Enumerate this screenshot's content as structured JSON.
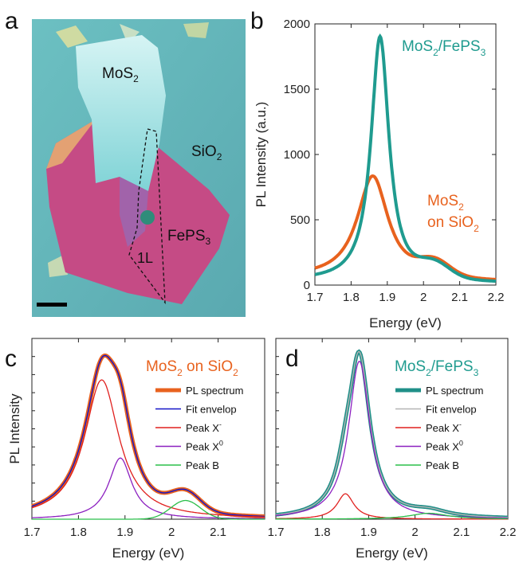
{
  "panels": {
    "a": {
      "label": "a",
      "annotations": {
        "mos2": "MoS",
        "mos2_sub": "2",
        "sio2": "SiO",
        "sio2_sub": "2",
        "feps3": "FePS",
        "feps3_sub": "3",
        "monolayer": "1L"
      },
      "colors": {
        "substrate": "#5fb3b5",
        "feps3": "#c24a83",
        "mos2": "#8fdde0",
        "marker": "#2f8c7a"
      }
    }
  },
  "chart_data": [
    {
      "panel": "b",
      "type": "line",
      "label": "b",
      "xlabel": "Energy (eV)",
      "ylabel": "PL Intensity (a.u.)",
      "xlim": [
        1.7,
        2.2
      ],
      "ylim": [
        0,
        2000
      ],
      "xticks": [
        "1.7",
        "1.8",
        "1.9",
        "2",
        "2.1",
        "2.2"
      ],
      "yticks": [
        "0",
        "500",
        "1000",
        "1500",
        "2000"
      ],
      "series": [
        {
          "name": "MoS2/FePS3",
          "label_parts": [
            "MoS",
            "2",
            "/FePS",
            "3"
          ],
          "color": "#1f9b8f",
          "peak": 1.88,
          "amplitude": 1880,
          "width": 0.03,
          "shoulder": 2.03,
          "shoulder_amp": 105,
          "baseline": 30
        },
        {
          "name": "MoS2 on SiO2",
          "label_parts": [
            "MoS",
            "2",
            "on SiO",
            "2"
          ],
          "color": "#e8621e",
          "peak": 1.86,
          "amplitude": 790,
          "width": 0.052,
          "shoulder": 2.03,
          "shoulder_amp": 110,
          "baseline": 55
        }
      ]
    },
    {
      "panel": "c",
      "type": "line",
      "label": "c",
      "title_parts": [
        "MoS",
        "2",
        " on SiO",
        "2"
      ],
      "title_color": "#e8621e",
      "xlabel": "Energy (eV)",
      "ylabel": "PL Intensity",
      "xlim": [
        1.7,
        2.2
      ],
      "xticks": [
        "1.7",
        "1.8",
        "1.9",
        "2",
        "2.1"
      ],
      "series": [
        {
          "name": "PL spectrum",
          "color": "#e8621e"
        },
        {
          "name": "Fit envelop",
          "color": "#1414c8"
        },
        {
          "name": "Peak X",
          "sup": "-",
          "color": "#e0201e",
          "center": 1.85,
          "amplitude": 0.82,
          "width": 0.045
        },
        {
          "name": "Peak X",
          "sup": "0",
          "color": "#8c20c0",
          "center": 1.89,
          "amplitude": 0.36,
          "width": 0.03
        },
        {
          "name": "Peak B",
          "color": "#2bbf4a",
          "center": 2.03,
          "amplitude": 0.11,
          "width": 0.045
        }
      ]
    },
    {
      "panel": "d",
      "type": "line",
      "label": "d",
      "title_parts": [
        "MoS",
        "2",
        "/FePS",
        "3"
      ],
      "title_color": "#1f9b8f",
      "xlabel": "Energy (eV)",
      "xlim": [
        1.7,
        2.2
      ],
      "xticks": [
        "1.7",
        "1.8",
        "1.9",
        "2",
        "2.1",
        "2.2"
      ],
      "series": [
        {
          "name": "PL spectrum",
          "color": "#1f8f88"
        },
        {
          "name": "Fit envelop",
          "color": "#b4b4b4"
        },
        {
          "name": "Peak X",
          "sup": "-",
          "color": "#e0201e",
          "center": 1.85,
          "amplitude": 0.15,
          "width": 0.022
        },
        {
          "name": "Peak X",
          "sup": "0",
          "color": "#8c20c0",
          "center": 1.88,
          "amplitude": 0.93,
          "width": 0.028
        },
        {
          "name": "Peak B",
          "color": "#2bbf4a",
          "center": 2.03,
          "amplitude": 0.035,
          "width": 0.05
        }
      ]
    }
  ]
}
